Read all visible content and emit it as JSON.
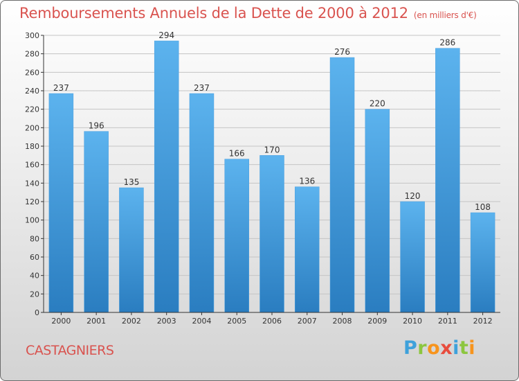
{
  "header": {
    "title": "Remboursements Annuels de la Dette de 2000 à 2012",
    "subtitle": "(en milliers d'€)"
  },
  "footer": {
    "commune": "CASTAGNIERS",
    "logo_letters": [
      {
        "char": "P",
        "color": "#3ea1db"
      },
      {
        "char": "r",
        "color": "#8cc63f"
      },
      {
        "char": "o",
        "color": "#f7941d"
      },
      {
        "char": "x",
        "color": "#e84c3d"
      },
      {
        "char": "i",
        "color": "#3ea1db"
      },
      {
        "char": "t",
        "color": "#8cc63f"
      },
      {
        "char": "i",
        "color": "#f7941d"
      }
    ]
  },
  "chart_data": {
    "type": "bar",
    "categories": [
      "2000",
      "2001",
      "2002",
      "2003",
      "2004",
      "2005",
      "2006",
      "2007",
      "2008",
      "2009",
      "2010",
      "2011",
      "2012"
    ],
    "values": [
      237,
      196,
      135,
      294,
      237,
      166,
      170,
      136,
      276,
      220,
      120,
      286,
      108
    ],
    "value_labels": [
      "237",
      "196",
      "135",
      "294",
      "237",
      "166",
      "170",
      "136",
      "276",
      "220",
      "120",
      "286",
      "108"
    ],
    "yticks": [
      "0",
      "20",
      "40",
      "60",
      "80",
      "100",
      "120",
      "140",
      "160",
      "180",
      "200",
      "220",
      "240",
      "260",
      "280",
      "300"
    ],
    "ylim": [
      0,
      300
    ],
    "grid": true,
    "colors": {
      "bar_top": "#5cb3ee",
      "bar_bottom": "#2a7dc0",
      "grid": "#c4c4c4",
      "axis": "#333333",
      "text": "#333333"
    }
  }
}
